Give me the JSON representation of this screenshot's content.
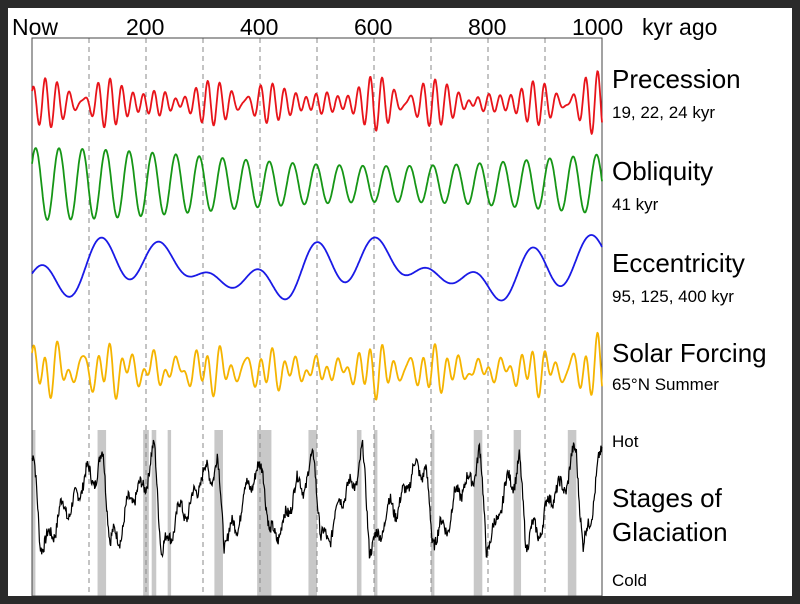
{
  "chart_data": {
    "type": "line",
    "title": "",
    "x_unit_label": "kyr ago",
    "x_origin_label": "Now",
    "x_range": [
      0,
      1000
    ],
    "x_ticks": [
      0,
      200,
      400,
      600,
      800,
      1000
    ],
    "x_tick_labels": [
      "Now",
      "200",
      "400",
      "600",
      "800",
      "1000"
    ],
    "gridlines_at": [
      100,
      200,
      300,
      400,
      500,
      600,
      700,
      800,
      900
    ],
    "grid": true,
    "series": [
      {
        "name": "Precession",
        "subtitle": "19, 22, 24 kyr",
        "color": "#e8141a",
        "periods_kyr": [
          19,
          22,
          24
        ]
      },
      {
        "name": "Obliquity",
        "subtitle": "41 kyr",
        "color": "#169616",
        "periods_kyr": [
          41
        ]
      },
      {
        "name": "Eccentricity",
        "subtitle": "95, 125, 400 kyr",
        "color": "#1a1ae6",
        "periods_kyr": [
          95,
          125,
          400
        ]
      },
      {
        "name": "Solar Forcing",
        "subtitle": "65°N Summer",
        "color": "#f5b400",
        "periods_kyr": []
      },
      {
        "name": "Stages of Glaciation",
        "subtitle": "",
        "color": "#000000",
        "periods_kyr": [],
        "top_label": "Hot",
        "bottom_label": "Cold"
      }
    ],
    "eccentricity_peaks_kyr": [
      120,
      215,
      330,
      575,
      860,
      985
    ],
    "glaciation_peaks_kyr": [
      2,
      125,
      215,
      325,
      405,
      495,
      580,
      690,
      785,
      855,
      955,
      1000
    ],
    "interglacial_bands_kyr": [
      [
        0,
        6
      ],
      [
        115,
        130
      ],
      [
        195,
        205
      ],
      [
        210,
        218
      ],
      [
        238,
        244
      ],
      [
        320,
        335
      ],
      [
        395,
        420
      ],
      [
        485,
        500
      ],
      [
        570,
        578
      ],
      [
        600,
        606
      ],
      [
        700,
        706
      ],
      [
        775,
        790
      ],
      [
        845,
        858
      ],
      [
        940,
        955
      ]
    ]
  }
}
